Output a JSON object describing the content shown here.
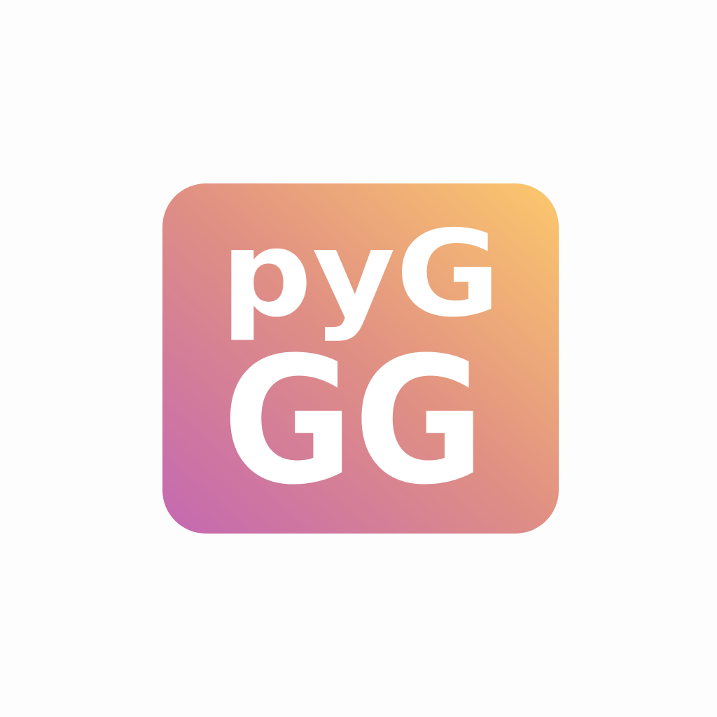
{
  "logo": {
    "lines": [
      "pyG",
      "GG"
    ]
  }
}
